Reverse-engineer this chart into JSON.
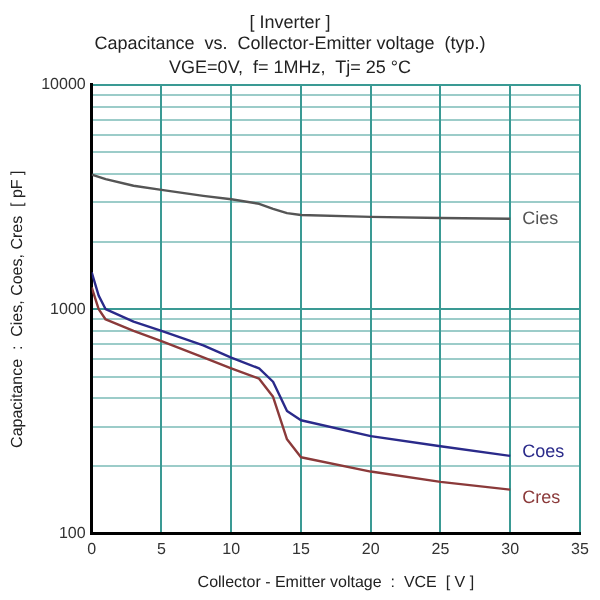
{
  "chart_data": {
    "type": "line",
    "title": "[ Inverter ]\nCapacitance  vs.  Collector-Emitter voltage  (typ.)",
    "subtitle": "VGE=0V,  f= 1MHz,  Tj= 25 °C",
    "xlabel": "Collector - Emitter voltage  :  VCE  [ V ]",
    "ylabel": "Capacitance  :  Cies, Coes, Cres  [ pF ]",
    "series": [
      {
        "name": "Cies",
        "color": "#555555",
        "x": [
          0,
          1,
          3,
          5,
          8,
          10,
          12,
          13,
          14,
          15,
          20,
          25,
          30
        ],
        "values": [
          3980,
          3800,
          3550,
          3400,
          3200,
          3090,
          2950,
          2800,
          2680,
          2630,
          2580,
          2550,
          2530
        ]
      },
      {
        "name": "Coes",
        "color": "#2a2a8a",
        "x": [
          0,
          0.5,
          1,
          3,
          5,
          8,
          10,
          12,
          13,
          14,
          15,
          20,
          25,
          30
        ],
        "values": [
          1460,
          1150,
          1000,
          880,
          800,
          690,
          608,
          545,
          475,
          352,
          320,
          272,
          245,
          222
        ]
      },
      {
        "name": "Cres",
        "color": "#8b3a3a",
        "x": [
          0,
          0.5,
          1,
          3,
          5,
          8,
          10,
          12,
          13,
          14,
          15,
          20,
          25,
          30
        ],
        "values": [
          1250,
          1000,
          900,
          800,
          720,
          610,
          545,
          490,
          407,
          263,
          219,
          189,
          170,
          157
        ]
      }
    ],
    "xlim": [
      0,
      35
    ],
    "xticks": [
      0,
      5,
      10,
      15,
      20,
      25,
      30,
      35
    ],
    "ylim": [
      100,
      10000
    ],
    "yticks": [
      100,
      {
        "value": 200,
        "label": null
      },
      {
        "value": 300,
        "label": null
      },
      {
        "value": 400,
        "label": null
      },
      {
        "value": 500,
        "label": null
      },
      {
        "value": 600,
        "label": null
      },
      {
        "value": 700,
        "label": null
      },
      {
        "value": 800,
        "label": null
      },
      {
        "value": 900,
        "label": null
      },
      1000,
      {
        "value": 2000,
        "label": null
      },
      {
        "value": 3000,
        "label": null
      },
      {
        "value": 4000,
        "label": null
      },
      {
        "value": 5000,
        "label": null
      },
      {
        "value": 6000,
        "label": null
      },
      {
        "value": 7000,
        "label": null
      },
      {
        "value": 8000,
        "label": null
      },
      {
        "value": 9000,
        "label": null
      },
      10000
    ],
    "log": "y",
    "grid": true,
    "legend": false,
    "marker": "none",
    "line_style": "solid"
  }
}
